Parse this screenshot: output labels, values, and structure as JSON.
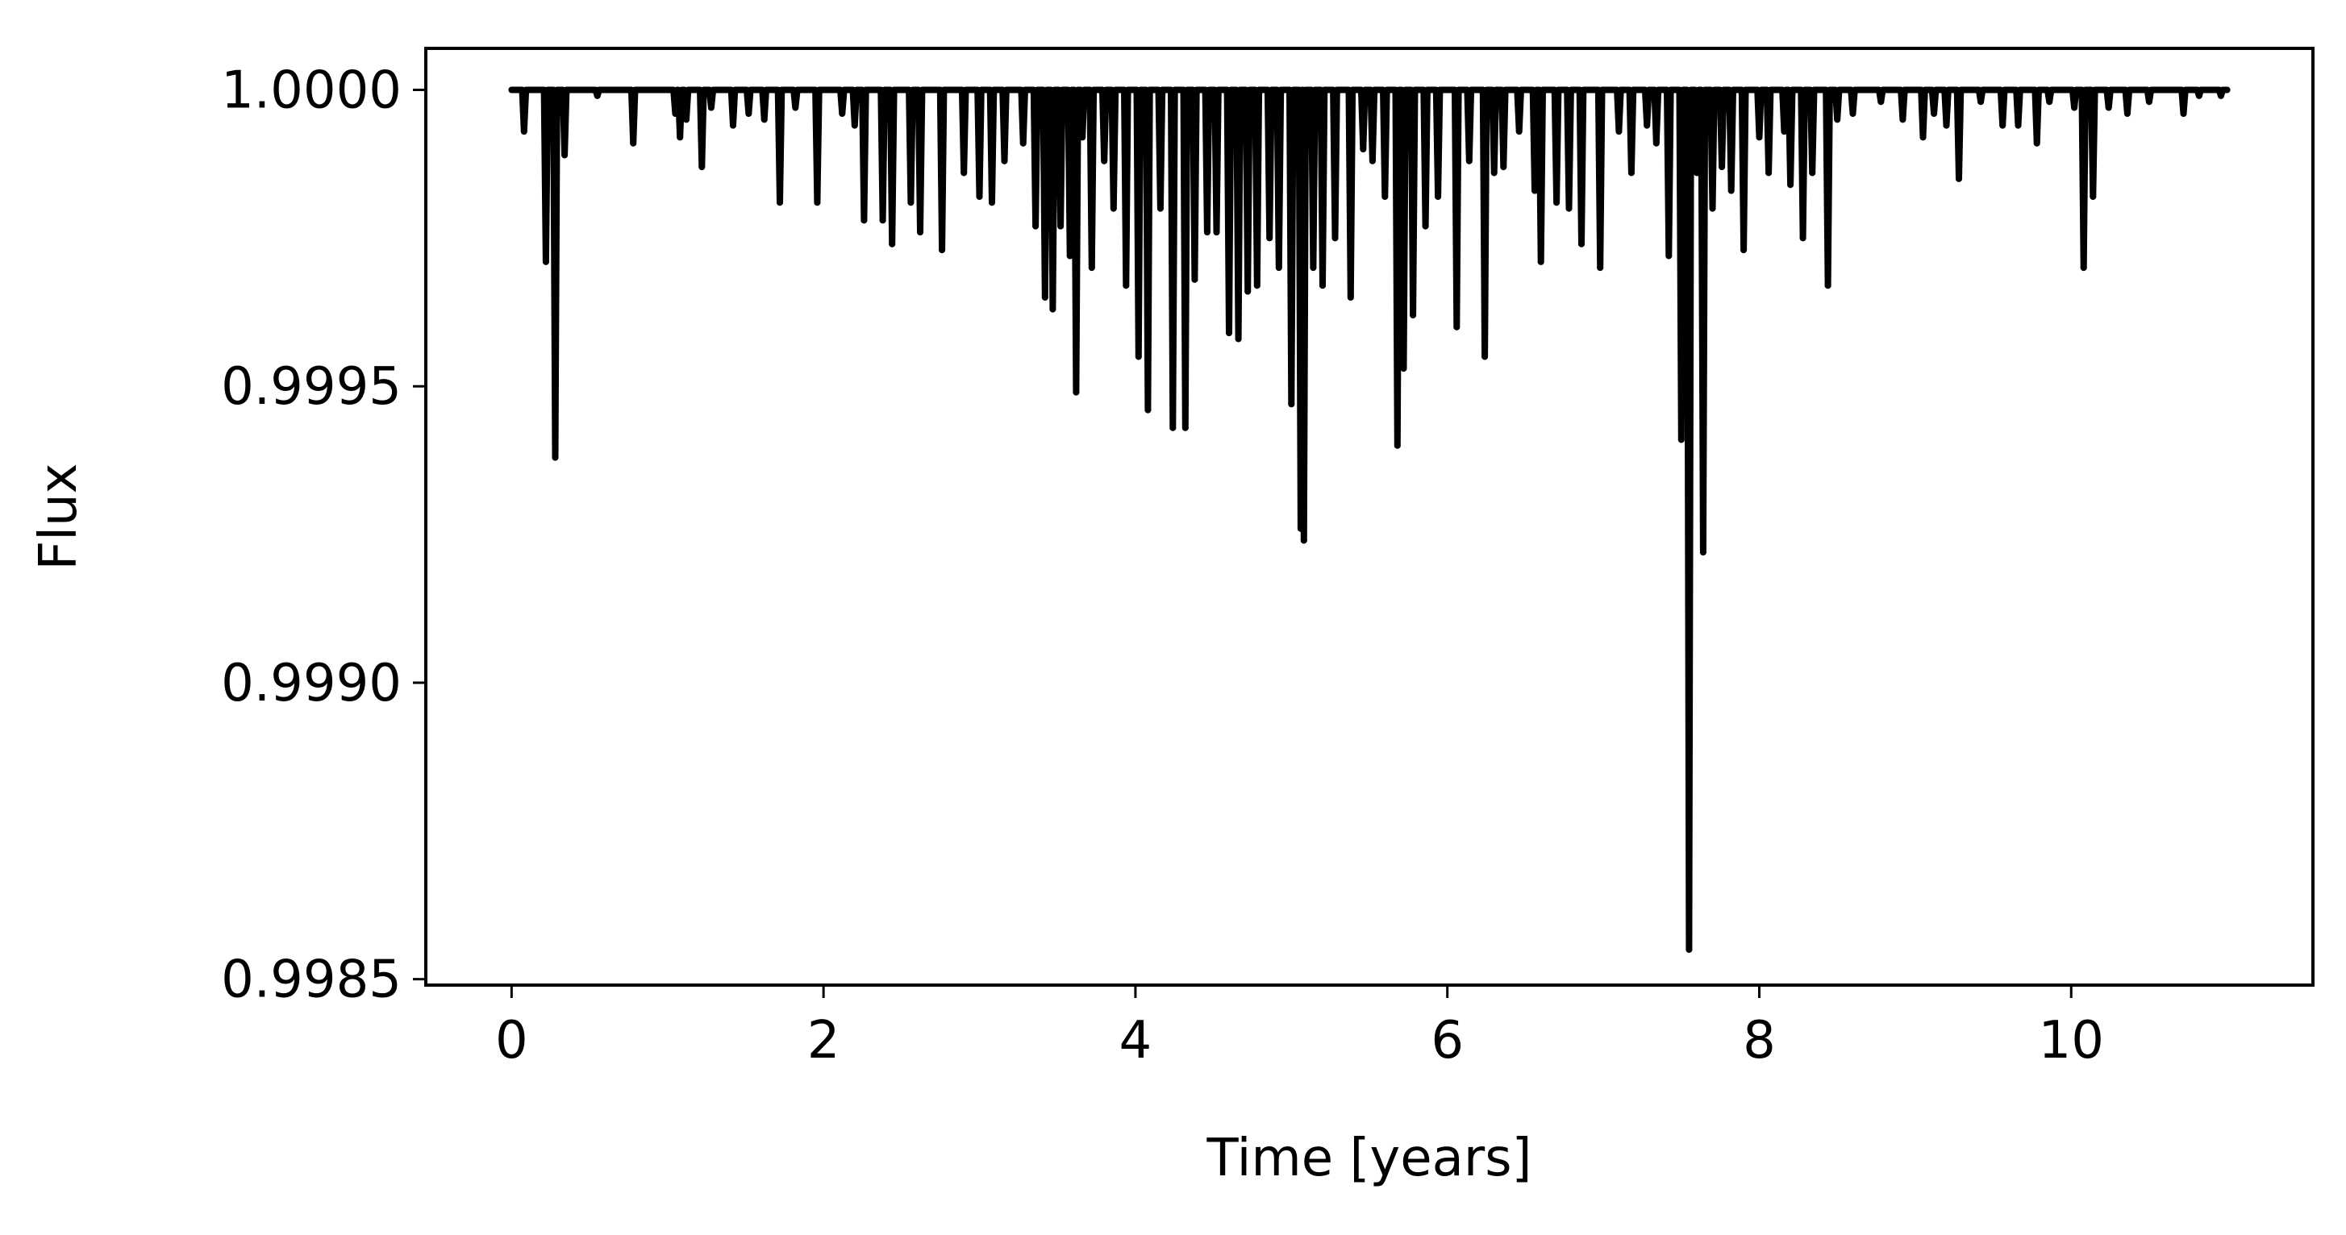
{
  "chart_data": {
    "type": "line",
    "title": "",
    "xlabel": "Time [years]",
    "ylabel": "Flux",
    "xlim": [
      -0.55,
      11.55
    ],
    "ylim": [
      0.99849,
      1.00007
    ],
    "xticks": [
      0,
      2,
      4,
      6,
      8,
      10
    ],
    "xtick_labels": [
      "0",
      "2",
      "4",
      "6",
      "8",
      "10"
    ],
    "yticks": [
      0.9985,
      0.999,
      0.9995,
      1.0
    ],
    "ytick_labels": [
      "0.9985",
      "0.9990",
      "0.9995",
      "1.0000"
    ],
    "grid": false,
    "legend": "none",
    "line_color": "#000000",
    "baseline": 1.0,
    "x_range": [
      0,
      11
    ],
    "dips": [
      [
        0.08,
        0.99993
      ],
      [
        0.22,
        0.99971
      ],
      [
        0.28,
        0.99938
      ],
      [
        0.34,
        0.99989
      ],
      [
        0.55,
        0.99999
      ],
      [
        0.78,
        0.99991
      ],
      [
        1.05,
        0.99996
      ],
      [
        1.08,
        0.99992
      ],
      [
        1.12,
        0.99995
      ],
      [
        1.22,
        0.99987
      ],
      [
        1.28,
        0.99997
      ],
      [
        1.42,
        0.99994
      ],
      [
        1.52,
        0.99996
      ],
      [
        1.62,
        0.99995
      ],
      [
        1.72,
        0.99981
      ],
      [
        1.82,
        0.99997
      ],
      [
        1.96,
        0.99981
      ],
      [
        2.12,
        0.99996
      ],
      [
        2.2,
        0.99994
      ],
      [
        2.26,
        0.99978
      ],
      [
        2.38,
        0.99978
      ],
      [
        2.44,
        0.99974
      ],
      [
        2.56,
        0.99981
      ],
      [
        2.62,
        0.99976
      ],
      [
        2.76,
        0.99973
      ],
      [
        2.9,
        0.99986
      ],
      [
        3.0,
        0.99982
      ],
      [
        3.08,
        0.99981
      ],
      [
        3.16,
        0.99988
      ],
      [
        3.28,
        0.99991
      ],
      [
        3.36,
        0.99977
      ],
      [
        3.42,
        0.99965
      ],
      [
        3.47,
        0.99963
      ],
      [
        3.52,
        0.99977
      ],
      [
        3.58,
        0.99972
      ],
      [
        3.62,
        0.99949
      ],
      [
        3.66,
        0.99992
      ],
      [
        3.72,
        0.9997
      ],
      [
        3.8,
        0.99988
      ],
      [
        3.86,
        0.9998
      ],
      [
        3.94,
        0.99967
      ],
      [
        4.02,
        0.99955
      ],
      [
        4.08,
        0.99946
      ],
      [
        4.16,
        0.9998
      ],
      [
        4.24,
        0.99943
      ],
      [
        4.32,
        0.99943
      ],
      [
        4.38,
        0.99968
      ],
      [
        4.46,
        0.99976
      ],
      [
        4.52,
        0.99976
      ],
      [
        4.6,
        0.99959
      ],
      [
        4.66,
        0.99958
      ],
      [
        4.72,
        0.99966
      ],
      [
        4.78,
        0.99967
      ],
      [
        4.86,
        0.99975
      ],
      [
        4.92,
        0.9997
      ],
      [
        5.0,
        0.99947
      ],
      [
        5.06,
        0.99926
      ],
      [
        5.08,
        0.99924
      ],
      [
        5.14,
        0.9997
      ],
      [
        5.2,
        0.99967
      ],
      [
        5.28,
        0.99975
      ],
      [
        5.38,
        0.99965
      ],
      [
        5.46,
        0.9999
      ],
      [
        5.52,
        0.99988
      ],
      [
        5.6,
        0.99982
      ],
      [
        5.68,
        0.9994
      ],
      [
        5.72,
        0.99953
      ],
      [
        5.78,
        0.99962
      ],
      [
        5.86,
        0.99977
      ],
      [
        5.94,
        0.99982
      ],
      [
        6.06,
        0.9996
      ],
      [
        6.14,
        0.99988
      ],
      [
        6.24,
        0.99955
      ],
      [
        6.3,
        0.99986
      ],
      [
        6.36,
        0.99987
      ],
      [
        6.46,
        0.99993
      ],
      [
        6.56,
        0.99983
      ],
      [
        6.6,
        0.99971
      ],
      [
        6.7,
        0.99981
      ],
      [
        6.78,
        0.9998
      ],
      [
        6.86,
        0.99974
      ],
      [
        6.98,
        0.9997
      ],
      [
        7.1,
        0.99993
      ],
      [
        7.18,
        0.99986
      ],
      [
        7.28,
        0.99994
      ],
      [
        7.34,
        0.99991
      ],
      [
        7.42,
        0.99972
      ],
      [
        7.5,
        0.99941
      ],
      [
        7.55,
        0.99855
      ],
      [
        7.6,
        0.99986
      ],
      [
        7.64,
        0.99922
      ],
      [
        7.7,
        0.9998
      ],
      [
        7.76,
        0.99987
      ],
      [
        7.82,
        0.99983
      ],
      [
        7.9,
        0.99973
      ],
      [
        8.0,
        0.99992
      ],
      [
        8.06,
        0.99986
      ],
      [
        8.16,
        0.99993
      ],
      [
        8.2,
        0.99984
      ],
      [
        8.28,
        0.99975
      ],
      [
        8.34,
        0.99986
      ],
      [
        8.44,
        0.99967
      ],
      [
        8.5,
        0.99995
      ],
      [
        8.6,
        0.99996
      ],
      [
        8.78,
        0.99998
      ],
      [
        8.92,
        0.99995
      ],
      [
        9.05,
        0.99992
      ],
      [
        9.12,
        0.99996
      ],
      [
        9.2,
        0.99994
      ],
      [
        9.28,
        0.99985
      ],
      [
        9.42,
        0.99998
      ],
      [
        9.56,
        0.99994
      ],
      [
        9.66,
        0.99994
      ],
      [
        9.78,
        0.99991
      ],
      [
        9.86,
        0.99998
      ],
      [
        10.02,
        0.99997
      ],
      [
        10.08,
        0.9997
      ],
      [
        10.14,
        0.99982
      ],
      [
        10.24,
        0.99997
      ],
      [
        10.36,
        0.99996
      ],
      [
        10.5,
        0.99998
      ],
      [
        10.72,
        0.99996
      ],
      [
        10.82,
        0.99999
      ],
      [
        10.96,
        0.99999
      ]
    ]
  }
}
